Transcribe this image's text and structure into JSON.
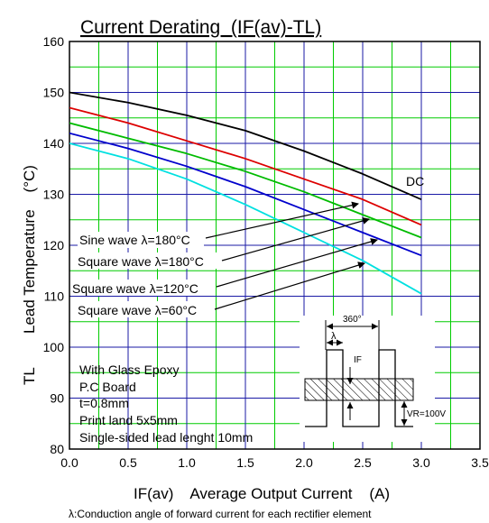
{
  "chart_data": {
    "type": "line",
    "title": "Current Derating  (IF(av)-TL)",
    "xlabel": "IF(av)    Average Output Current    (A)",
    "ylabel": "TL        Lead Temperature    (°C)",
    "footnote": "λ:Conduction angle of forward current for each rectifier element",
    "xlim": [
      0,
      3.5
    ],
    "ylim": [
      80,
      160
    ],
    "x_ticks": [
      "0.0",
      "0.5",
      "1.0",
      "1.5",
      "2.0",
      "2.5",
      "3.0",
      "3.5"
    ],
    "y_ticks": [
      "80",
      "90",
      "100",
      "110",
      "120",
      "130",
      "140",
      "150",
      "160"
    ],
    "grid": true,
    "grid_colors": {
      "major": "#1a1aa6",
      "minor": "#00cc00"
    },
    "series": [
      {
        "name": "DC",
        "color": "#000000",
        "x": [
          0,
          0.5,
          1.0,
          1.5,
          2.0,
          2.5,
          3.0
        ],
        "y": [
          150,
          148,
          145.5,
          142.5,
          138.5,
          134,
          129
        ]
      },
      {
        "name": "Sine wave λ=180°C",
        "color": "#dd0000",
        "x": [
          0,
          0.5,
          1.0,
          1.5,
          2.0,
          2.5,
          3.0
        ],
        "y": [
          147,
          144,
          140.5,
          137,
          133,
          129,
          124
        ]
      },
      {
        "name": "Square wave λ=180°C",
        "color": "#00bb00",
        "x": [
          0,
          0.5,
          1.0,
          1.5,
          2.0,
          2.5,
          3.0
        ],
        "y": [
          144,
          141,
          138,
          134.5,
          130.5,
          126,
          121.5
        ]
      },
      {
        "name": "Square wave λ=120°C",
        "color": "#0000cc",
        "x": [
          0,
          0.5,
          1.0,
          1.5,
          2.0,
          2.5,
          3.0
        ],
        "y": [
          142,
          139,
          135.5,
          131.5,
          127,
          122.5,
          118
        ]
      },
      {
        "name": "Square wave λ=60°C",
        "color": "#00e0e0",
        "x": [
          0,
          0.5,
          1.0,
          1.5,
          2.0,
          2.5,
          3.0
        ],
        "y": [
          140,
          137,
          133,
          128,
          122.5,
          117,
          110.5
        ]
      }
    ],
    "labels": {
      "dc": "DC",
      "sine180": "Sine wave λ=180°C",
      "square180": "Square wave λ=180°C",
      "square120": "Square wave λ=120°C",
      "square60": "Square wave λ=60°C"
    },
    "conditions": [
      "With Glass Epoxy",
      "P.C Board",
      "t=0.8mm",
      "Print land 5x5mm",
      "Single-sided lead lenght 10mm"
    ],
    "inset": {
      "angle_label": "360°",
      "lambda_label": "λ",
      "if_label": "IF",
      "vr_label": "VR=100V"
    }
  }
}
